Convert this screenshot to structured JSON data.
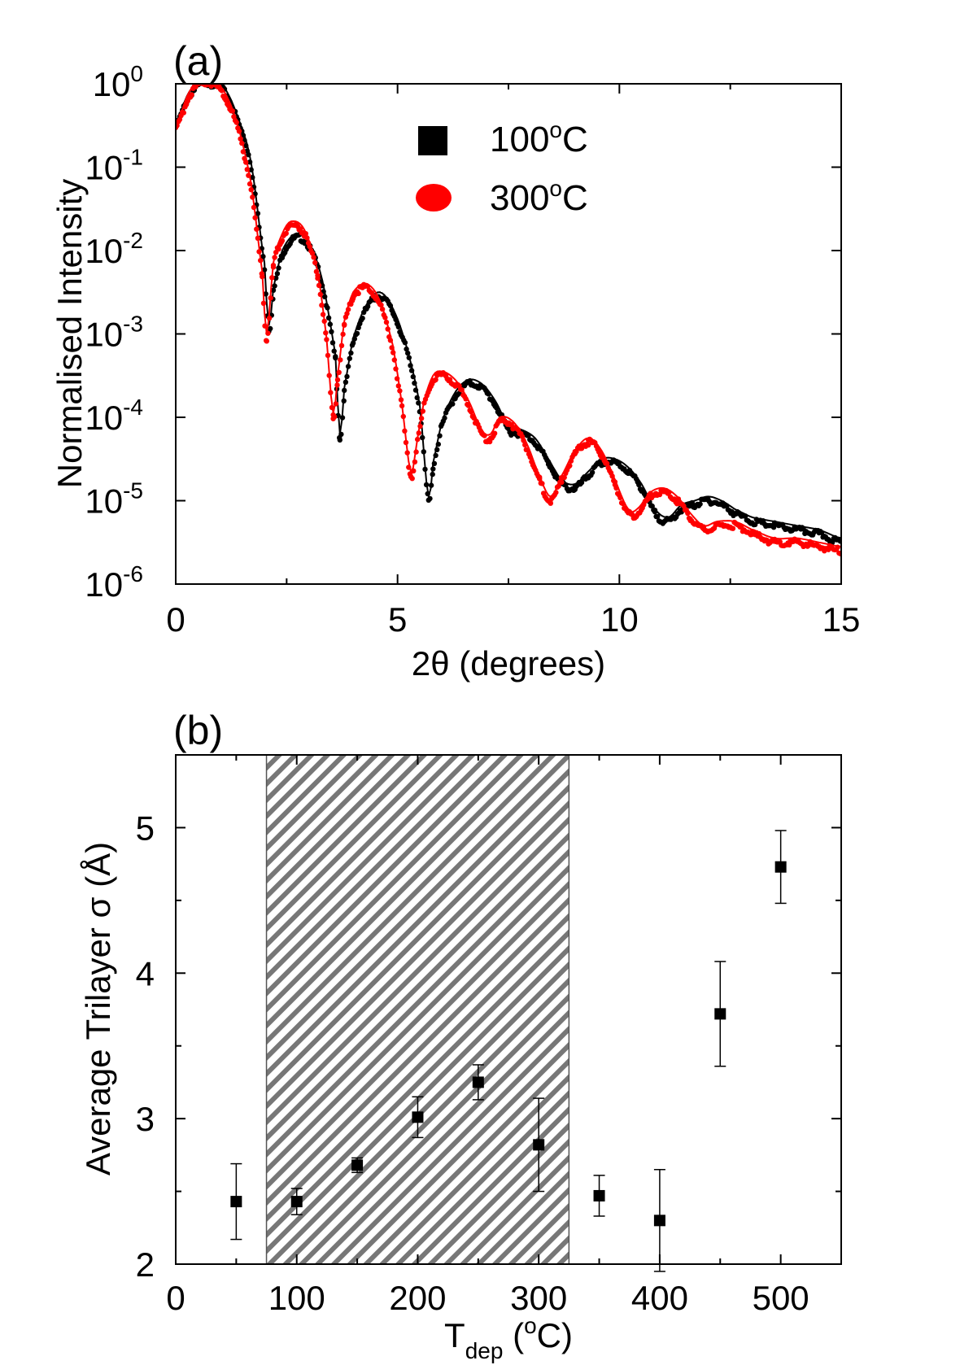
{
  "colors": {
    "black": "#000000",
    "red": "#ff0000",
    "hatch": "#777777"
  },
  "chart_data": [
    {
      "panel_label": "(a)",
      "type": "line",
      "title": "",
      "xlabel": "2θ (degrees)",
      "ylabel": "Normalised Intensity",
      "xlim": [
        0,
        15
      ],
      "ylim_log10": [
        -6,
        0
      ],
      "y_scale": "log",
      "x_ticks": [
        0,
        5,
        10,
        15
      ],
      "x_tick_labels": [
        "0",
        "5",
        "10",
        "15"
      ],
      "y_ticks": [
        {
          "base": "10",
          "exp": "0",
          "log10": 0
        },
        {
          "base": "10",
          "exp": "-1",
          "log10": -1
        },
        {
          "base": "10",
          "exp": "-2",
          "log10": -2
        },
        {
          "base": "10",
          "exp": "-3",
          "log10": -3
        },
        {
          "base": "10",
          "exp": "-4",
          "log10": -4
        },
        {
          "base": "10",
          "exp": "-5",
          "log10": -5
        },
        {
          "base": "10",
          "exp": "-6",
          "log10": -6
        }
      ],
      "legend_position": "top-right",
      "series": [
        {
          "name": "100°C",
          "legend_label": "100",
          "legend_sup": "o",
          "legend_unit": "C",
          "marker": "square",
          "color": "#000000",
          "x": [
            0,
            0.3,
            0.6,
            0.8,
            1.1,
            1.4,
            1.7,
            2.0,
            2.1,
            2.2,
            2.4,
            2.7,
            3.0,
            3.3,
            3.6,
            3.7,
            3.8,
            4.0,
            4.3,
            4.6,
            4.9,
            5.2,
            5.5,
            5.7,
            5.8,
            6.0,
            6.3,
            6.6,
            6.9,
            7.2,
            7.5,
            7.8,
            8.1,
            8.4,
            8.7,
            9.0,
            9.3,
            9.6,
            9.9,
            10.2,
            10.5,
            10.8,
            11.1,
            11.4,
            11.7,
            12.0,
            12.3,
            12.6,
            13.0,
            13.5,
            14.0,
            14.5,
            15.0
          ],
          "log10_y": [
            -0.5,
            -0.15,
            0,
            0,
            -0.1,
            -0.45,
            -1.0,
            -2.2,
            -2.95,
            -2.5,
            -2.05,
            -1.85,
            -1.95,
            -2.4,
            -3.3,
            -4.25,
            -3.7,
            -3.1,
            -2.7,
            -2.55,
            -2.75,
            -3.2,
            -3.9,
            -5.0,
            -4.6,
            -4.1,
            -3.75,
            -3.6,
            -3.65,
            -3.85,
            -4.15,
            -4.2,
            -4.3,
            -4.55,
            -4.8,
            -4.85,
            -4.7,
            -4.55,
            -4.55,
            -4.65,
            -4.85,
            -5.15,
            -5.25,
            -5.1,
            -5.05,
            -5.0,
            -5.05,
            -5.15,
            -5.25,
            -5.3,
            -5.35,
            -5.4,
            -5.5
          ]
        },
        {
          "name": "300°C",
          "legend_label": "300",
          "legend_sup": "o",
          "legend_unit": "C",
          "marker": "circle",
          "color": "#ff0000",
          "x": [
            0,
            0.3,
            0.6,
            0.8,
            1.1,
            1.4,
            1.7,
            1.95,
            2.05,
            2.2,
            2.4,
            2.6,
            2.9,
            3.2,
            3.4,
            3.55,
            3.65,
            3.8,
            4.0,
            4.3,
            4.6,
            4.9,
            5.1,
            5.3,
            5.45,
            5.6,
            5.8,
            6.0,
            6.3,
            6.6,
            6.9,
            7.1,
            7.3,
            7.6,
            7.9,
            8.2,
            8.45,
            8.7,
            9.0,
            9.3,
            9.6,
            9.9,
            10.2,
            10.4,
            10.7,
            11.0,
            11.3,
            11.6,
            11.9,
            12.2,
            12.6,
            13.0,
            13.5,
            14.0,
            14.5,
            15.0
          ],
          "log10_y": [
            -0.55,
            -0.15,
            0,
            0,
            -0.15,
            -0.55,
            -1.25,
            -2.3,
            -3.05,
            -2.2,
            -1.85,
            -1.7,
            -1.8,
            -2.3,
            -3.1,
            -4.0,
            -3.55,
            -2.9,
            -2.55,
            -2.45,
            -2.65,
            -3.2,
            -3.9,
            -4.7,
            -4.3,
            -3.85,
            -3.55,
            -3.5,
            -3.6,
            -3.85,
            -4.2,
            -4.25,
            -4.05,
            -4.1,
            -4.35,
            -4.75,
            -5.0,
            -4.75,
            -4.45,
            -4.3,
            -4.45,
            -4.8,
            -5.15,
            -5.15,
            -4.95,
            -4.9,
            -5.0,
            -5.2,
            -5.35,
            -5.3,
            -5.3,
            -5.4,
            -5.5,
            -5.5,
            -5.55,
            -5.6
          ]
        }
      ]
    },
    {
      "panel_label": "(b)",
      "type": "scatter",
      "title": "",
      "xlabel_main": "T",
      "xlabel_sub": "dep",
      "xlabel_open": " (",
      "xlabel_sup": "o",
      "xlabel_close": "C)",
      "ylabel": "Average Trilayer σ (Å)",
      "xlim": [
        0,
        550
      ],
      "ylim": [
        2,
        5.5
      ],
      "x_ticks": [
        0,
        100,
        200,
        300,
        400,
        500
      ],
      "x_tick_labels": [
        "0",
        "100",
        "200",
        "300",
        "400",
        "500"
      ],
      "y_ticks": [
        2,
        3,
        4,
        5
      ],
      "y_tick_labels": [
        "2",
        "3",
        "4",
        "5"
      ],
      "shaded_region": {
        "x_start": 75,
        "x_end": 325,
        "pattern": "diagonal-hatch"
      },
      "series": [
        {
          "name": "Average Trilayer σ",
          "marker": "square",
          "color": "#000000",
          "x": [
            50,
            100,
            150,
            200,
            250,
            300,
            350,
            400,
            450,
            500
          ],
          "y": [
            2.43,
            2.43,
            2.68,
            3.01,
            3.25,
            2.82,
            2.47,
            2.3,
            3.72,
            4.73
          ],
          "err": [
            0.26,
            0.09,
            0.05,
            0.14,
            0.12,
            0.32,
            0.14,
            0.35,
            0.36,
            0.25
          ]
        }
      ]
    }
  ]
}
